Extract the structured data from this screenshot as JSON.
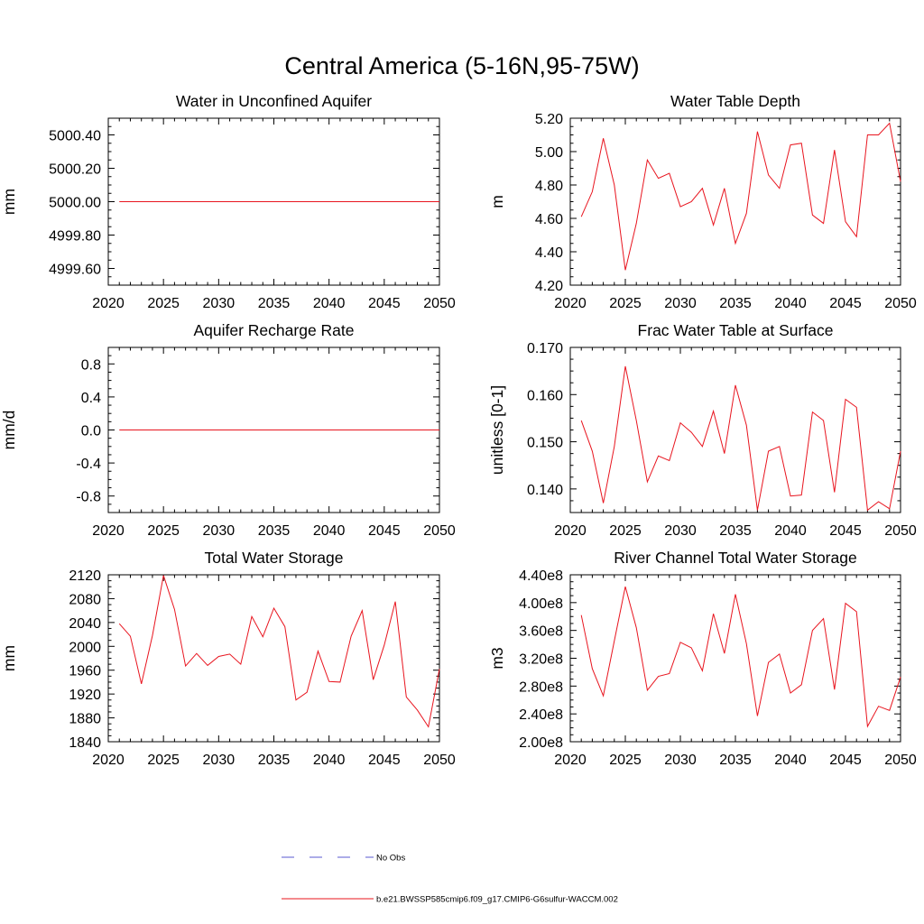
{
  "figure": {
    "title": "Central America (5-16N,95-75W)"
  },
  "legend": {
    "entries": [
      {
        "label": "No Obs",
        "color": "#5a5ad0",
        "style": "dashed"
      },
      {
        "label": "b.e21.BWSSP585cmip6.f09_g17.CMIP6-G6sulfur-WACCM.002",
        "color": "#e8141e",
        "style": "solid"
      }
    ]
  },
  "chart_data": [
    {
      "type": "line",
      "title": "Water in Unconfined Aquifer",
      "ylabel": "mm",
      "xlim": [
        2020,
        2050
      ],
      "ylim": [
        4999.5,
        5000.5
      ],
      "yticks": [
        4999.6,
        4999.8,
        5000.0,
        5000.2,
        5000.4
      ],
      "ytick_labels": [
        "4999.60",
        "4999.80",
        "5000.00",
        "5000.20",
        "5000.40"
      ],
      "xticks": [
        2020,
        2025,
        2030,
        2035,
        2040,
        2045,
        2050
      ],
      "xtick_labels": [
        "2020",
        "2025",
        "2030",
        "2035",
        "2040",
        "2045",
        "2050"
      ],
      "x": [
        2021,
        2050
      ],
      "series": [
        {
          "color": "#e8141e",
          "values": [
            5000.0,
            5000.0
          ]
        }
      ]
    },
    {
      "type": "line",
      "title": "Water Table Depth",
      "ylabel": "m",
      "xlim": [
        2020,
        2050
      ],
      "ylim": [
        4.2,
        5.2
      ],
      "yticks": [
        4.2,
        4.4,
        4.6,
        4.8,
        5.0,
        5.2
      ],
      "ytick_labels": [
        "4.20",
        "4.40",
        "4.60",
        "4.80",
        "5.00",
        "5.20"
      ],
      "xticks": [
        2020,
        2025,
        2030,
        2035,
        2040,
        2045,
        2050
      ],
      "xtick_labels": [
        "2020",
        "2025",
        "2030",
        "2035",
        "2040",
        "2045",
        "2050"
      ],
      "x": [
        2021,
        2022,
        2023,
        2024,
        2025,
        2026,
        2027,
        2028,
        2029,
        2030,
        2031,
        2032,
        2033,
        2034,
        2035,
        2036,
        2037,
        2038,
        2039,
        2040,
        2041,
        2042,
        2043,
        2044,
        2045,
        2046,
        2047,
        2048,
        2049,
        2050
      ],
      "series": [
        {
          "color": "#e8141e",
          "values": [
            4.61,
            4.76,
            5.08,
            4.8,
            4.29,
            4.57,
            4.95,
            4.84,
            4.87,
            4.67,
            4.7,
            4.78,
            4.56,
            4.78,
            4.45,
            4.63,
            5.12,
            4.86,
            4.78,
            5.04,
            5.05,
            4.62,
            4.57,
            5.01,
            4.58,
            4.49,
            5.1,
            5.1,
            5.17,
            4.82
          ]
        }
      ]
    },
    {
      "type": "line",
      "title": "Aquifer Recharge Rate",
      "ylabel": "mm/d",
      "xlim": [
        2020,
        2050
      ],
      "ylim": [
        -1.0,
        1.0
      ],
      "yticks": [
        -0.8,
        -0.4,
        0.0,
        0.4,
        0.8
      ],
      "ytick_labels": [
        "-0.8",
        "-0.4",
        "0.0",
        "0.4",
        "0.8"
      ],
      "xticks": [
        2020,
        2025,
        2030,
        2035,
        2040,
        2045,
        2050
      ],
      "xtick_labels": [
        "2020",
        "2025",
        "2030",
        "2035",
        "2040",
        "2045",
        "2050"
      ],
      "x": [
        2021,
        2050
      ],
      "series": [
        {
          "color": "#e8141e",
          "values": [
            0.0,
            0.0
          ]
        }
      ]
    },
    {
      "type": "line",
      "title": "Frac Water Table at Surface",
      "ylabel": "unitless [0-1]",
      "xlim": [
        2020,
        2050
      ],
      "ylim": [
        0.135,
        0.17
      ],
      "yticks": [
        0.14,
        0.15,
        0.16,
        0.17
      ],
      "ytick_labels": [
        "0.140",
        "0.150",
        "0.160",
        "0.170"
      ],
      "xticks": [
        2020,
        2025,
        2030,
        2035,
        2040,
        2045,
        2050
      ],
      "xtick_labels": [
        "2020",
        "2025",
        "2030",
        "2035",
        "2040",
        "2045",
        "2050"
      ],
      "x": [
        2021,
        2022,
        2023,
        2024,
        2025,
        2026,
        2027,
        2028,
        2029,
        2030,
        2031,
        2032,
        2033,
        2034,
        2035,
        2036,
        2037,
        2038,
        2039,
        2040,
        2041,
        2042,
        2043,
        2044,
        2045,
        2046,
        2047,
        2048,
        2049,
        2050
      ],
      "series": [
        {
          "color": "#e8141e",
          "values": [
            0.1545,
            0.148,
            0.137,
            0.149,
            0.166,
            0.1545,
            0.1415,
            0.147,
            0.146,
            0.154,
            0.152,
            0.149,
            0.1565,
            0.1475,
            0.162,
            0.1535,
            0.1355,
            0.148,
            0.149,
            0.1385,
            0.1387,
            0.1563,
            0.1545,
            0.1393,
            0.159,
            0.1573,
            0.1355,
            0.1373,
            0.1358,
            0.148
          ]
        }
      ]
    },
    {
      "type": "line",
      "title": "Total Water Storage",
      "ylabel": "mm",
      "xlim": [
        2020,
        2050
      ],
      "ylim": [
        1840,
        2120
      ],
      "yticks": [
        1840,
        1880,
        1920,
        1960,
        2000,
        2040,
        2080,
        2120
      ],
      "ytick_labels": [
        "1840",
        "1880",
        "1920",
        "1960",
        "2000",
        "2040",
        "2080",
        "2120"
      ],
      "xticks": [
        2020,
        2025,
        2030,
        2035,
        2040,
        2045,
        2050
      ],
      "xtick_labels": [
        "2020",
        "2025",
        "2030",
        "2035",
        "2040",
        "2045",
        "2050"
      ],
      "x": [
        2021,
        2022,
        2023,
        2024,
        2025,
        2026,
        2027,
        2028,
        2029,
        2030,
        2031,
        2032,
        2033,
        2034,
        2035,
        2036,
        2037,
        2038,
        2039,
        2040,
        2041,
        2042,
        2043,
        2044,
        2045,
        2046,
        2047,
        2048,
        2049,
        2050
      ],
      "series": [
        {
          "color": "#e8141e",
          "values": [
            2038,
            2017,
            1937,
            2018,
            2119,
            2062,
            1967,
            1988,
            1968,
            1983,
            1987,
            1970,
            2050,
            2016,
            2064,
            2033,
            1910,
            1923,
            1992,
            1941,
            1940,
            2017,
            2060,
            1944,
            2002,
            2075,
            1915,
            1893,
            1865,
            1962
          ]
        }
      ]
    },
    {
      "type": "line",
      "title": "River Channel Total Water Storage",
      "ylabel": "m3",
      "xlim": [
        2020,
        2050
      ],
      "ylim": [
        200000000.0,
        440000000.0
      ],
      "yticks": [
        200000000.0,
        240000000.0,
        280000000.0,
        320000000.0,
        360000000.0,
        400000000.0,
        440000000.0
      ],
      "ytick_labels": [
        "2.00e8",
        "2.40e8",
        "2.80e8",
        "3.20e8",
        "3.60e8",
        "4.00e8",
        "4.40e8"
      ],
      "xticks": [
        2020,
        2025,
        2030,
        2035,
        2040,
        2045,
        2050
      ],
      "xtick_labels": [
        "2020",
        "2025",
        "2030",
        "2035",
        "2040",
        "2045",
        "2050"
      ],
      "x": [
        2021,
        2022,
        2023,
        2024,
        2025,
        2026,
        2027,
        2028,
        2029,
        2030,
        2031,
        2032,
        2033,
        2034,
        2035,
        2036,
        2037,
        2038,
        2039,
        2040,
        2041,
        2042,
        2043,
        2044,
        2045,
        2046,
        2047,
        2048,
        2049,
        2050
      ],
      "series": [
        {
          "color": "#e8141e",
          "values": [
            382000000.0,
            305000000.0,
            266000000.0,
            345000000.0,
            423000000.0,
            364000000.0,
            274000000.0,
            294000000.0,
            298000000.0,
            343000000.0,
            335000000.0,
            302000000.0,
            384000000.0,
            327000000.0,
            412000000.0,
            341000000.0,
            237000000.0,
            314000000.0,
            326000000.0,
            270000000.0,
            282000000.0,
            360000000.0,
            377000000.0,
            275000000.0,
            399000000.0,
            387000000.0,
            222000000.0,
            251000000.0,
            245000000.0,
            293000000.0
          ]
        }
      ]
    }
  ]
}
